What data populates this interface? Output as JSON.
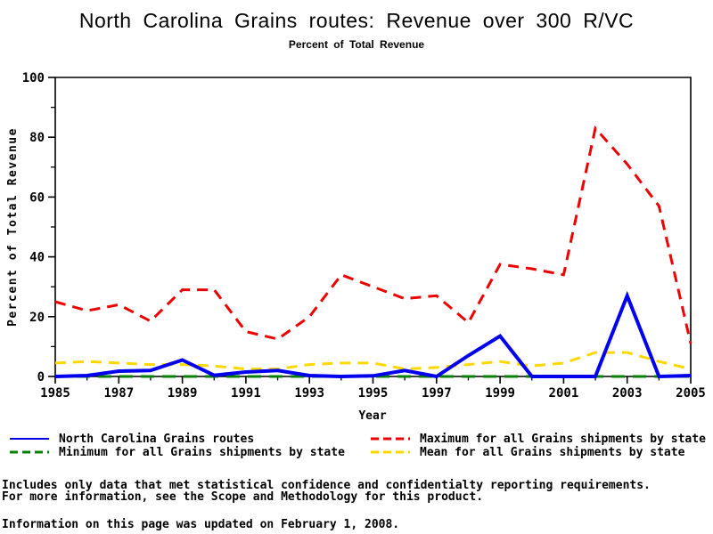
{
  "page": {
    "title": "North Carolina Grains routes: Revenue over 300 R/VC",
    "subtitle": "Percent of Total Revenue"
  },
  "chart_data": {
    "type": "line",
    "title": "North Carolina Grains routes: Revenue over 300 R/VC",
    "subtitle": "Percent of Total Revenue",
    "xlabel": "Year",
    "ylabel": "Percent of Total Revenue",
    "xlim": [
      1985,
      2005
    ],
    "ylim": [
      0,
      100
    ],
    "grid": false,
    "legend_position": "bottom",
    "x": [
      1985,
      1986,
      1987,
      1988,
      1989,
      1990,
      1991,
      1992,
      1993,
      1994,
      1995,
      1996,
      1997,
      1998,
      1999,
      2000,
      2001,
      2002,
      2003,
      2004,
      2005
    ],
    "xticks_labeled": [
      1985,
      1987,
      1989,
      1991,
      1993,
      1995,
      1997,
      1999,
      2001,
      2003,
      2005
    ],
    "xticks_minor": [
      1986,
      1988,
      1990,
      1992,
      1994,
      1996,
      1998,
      2000,
      2002,
      2004
    ],
    "yticks_labeled": [
      0,
      20,
      40,
      60,
      80,
      100
    ],
    "yticks_minor": [
      10,
      30,
      50,
      70,
      90
    ],
    "series": [
      {
        "name": "North Carolina Grains routes",
        "color": "#0000ee",
        "style": "solid",
        "values": [
          0,
          0.3,
          1.8,
          2,
          5.5,
          0.4,
          1.5,
          2,
          0.3,
          0,
          0.2,
          2,
          0,
          7,
          13.5,
          0,
          0,
          0,
          27,
          0,
          0.3
        ]
      },
      {
        "name": "Maximum for all Grains shipments by state",
        "color": "#ee0000",
        "style": "dashed",
        "values": [
          25,
          22,
          24,
          18.5,
          29,
          29,
          15,
          12.5,
          20,
          34,
          30,
          26,
          27,
          18,
          37.5,
          36,
          34,
          83,
          71,
          57,
          11
        ]
      },
      {
        "name": "Minimum for all Grains shipments by state",
        "color": "#008000",
        "style": "dashed",
        "values": [
          0,
          0,
          0,
          0,
          0,
          0,
          0,
          0,
          0,
          0,
          0,
          0,
          0,
          0,
          0,
          0,
          0,
          0,
          0,
          0,
          0
        ]
      },
      {
        "name": "Mean for all Grains shipments by state",
        "color": "#ffd700",
        "style": "dashed",
        "values": [
          4.5,
          5,
          4.5,
          4,
          4,
          3.5,
          2.5,
          2.5,
          4,
          4.5,
          4.5,
          2.5,
          3,
          4,
          5,
          3.5,
          4.5,
          8,
          8,
          5,
          2.5
        ]
      }
    ]
  },
  "notes": {
    "line1": "Includes only data that met statistical confidence and confidentialty reporting requirements.",
    "line2": "For more information, see the Scope and Methodology for this product.",
    "updated": "Information on this page was updated on February 1, 2008."
  }
}
